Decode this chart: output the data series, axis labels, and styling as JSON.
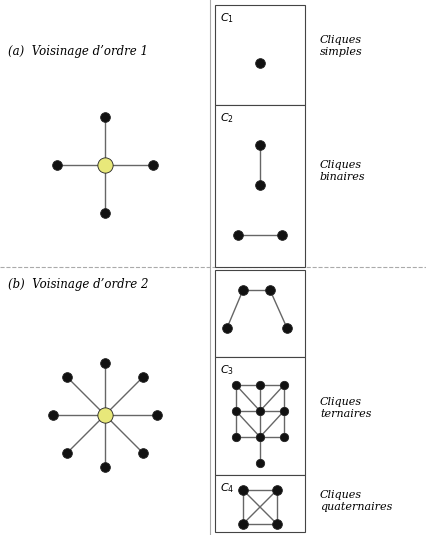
{
  "background_color": "#ffffff",
  "label_a": "(a)  Voisinage d’ordre 1",
  "label_b": "(b)  Voisinage d’ordre 2",
  "node_color_black": "#111111",
  "node_color_yellow": "#e8e87a",
  "edge_color": "#666666",
  "box_edge_color": "#444444",
  "sep_color": "#aaaaaa",
  "C1_label": "$C_1$",
  "C2_label": "$C_2$",
  "C3_label": "$C_3$",
  "C4_label": "$C_4$",
  "cliques_simples": "Cliques\nsimples",
  "cliques_binaires": "Cliques\nbinaires",
  "cliques_ternaires": "Cliques\nternaires",
  "cliques_quaternaires": "Cliques\nquaternaires",
  "figwidth": 4.27,
  "figheight": 5.35,
  "dpi": 100
}
